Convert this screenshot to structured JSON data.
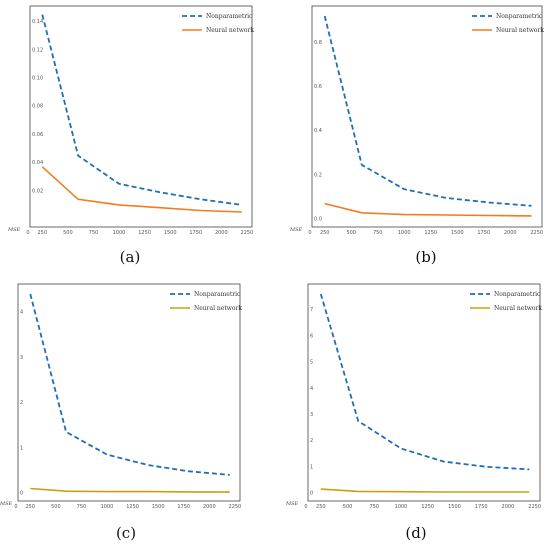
{
  "chart_data": [
    {
      "type": "line",
      "panel_label": "(a)",
      "ylabel": "MSE",
      "x": [
        250,
        600,
        1000,
        1400,
        1800,
        2200
      ],
      "xticks": [
        "250",
        "500",
        "750",
        "1000",
        "1250",
        "1500",
        "1750",
        "2000",
        "2250"
      ],
      "extra_tick": "0",
      "ylim": [
        0.0,
        0.144
      ],
      "yticks": [
        "0.02",
        "0.04",
        "0.06",
        "0.08",
        "0.10",
        "0.12",
        "0.14"
      ],
      "grid": false,
      "legend_position": "top-right",
      "series": [
        {
          "name": "Nonparametric",
          "style": "dashed",
          "color": "#1f6fb4",
          "values": [
            0.145,
            0.045,
            0.025,
            0.019,
            0.014,
            0.01
          ]
        },
        {
          "name": "Neural network",
          "style": "solid",
          "color": "#f47a20",
          "values": [
            0.037,
            0.014,
            0.01,
            0.008,
            0.006,
            0.005
          ]
        }
      ]
    },
    {
      "type": "line",
      "panel_label": "(b)",
      "ylabel": "MSE",
      "x": [
        250,
        600,
        1000,
        1400,
        1800,
        2200
      ],
      "xticks": [
        "250",
        "500",
        "750",
        "1000",
        "1250",
        "1500",
        "1750",
        "2000",
        "2250"
      ],
      "extra_tick": "0",
      "ylim": [
        0.0,
        0.92
      ],
      "yticks": [
        "0.0",
        "0.2",
        "0.4",
        "0.6",
        "0.8"
      ],
      "grid": false,
      "legend_position": "top-right",
      "series": [
        {
          "name": "Nonparametric",
          "style": "dashed",
          "color": "#1f6fb4",
          "values": [
            0.92,
            0.245,
            0.135,
            0.095,
            0.075,
            0.06
          ]
        },
        {
          "name": "Neural network",
          "style": "solid",
          "color": "#f47a20",
          "values": [
            0.07,
            0.028,
            0.02,
            0.018,
            0.016,
            0.014
          ]
        }
      ]
    },
    {
      "type": "line",
      "panel_label": "(c)",
      "ylabel": "MSE",
      "x": [
        250,
        600,
        1000,
        1400,
        1800,
        2200
      ],
      "xticks": [
        "250",
        "500",
        "750",
        "1000",
        "1250",
        "1500",
        "1750",
        "2000",
        "2250"
      ],
      "extra_tick": "0",
      "ylim": [
        0,
        4.4
      ],
      "yticks": [
        "0",
        "1",
        "2",
        "3",
        "4"
      ],
      "grid": false,
      "legend_position": "top-right",
      "series": [
        {
          "name": "Nonparametric",
          "style": "dashed",
          "color": "#1f6fb4",
          "values": [
            4.4,
            1.35,
            0.85,
            0.62,
            0.48,
            0.4
          ]
        },
        {
          "name": "Neural network",
          "style": "solid",
          "color": "#c8a010",
          "values": [
            0.1,
            0.04,
            0.03,
            0.03,
            0.025,
            0.02
          ]
        }
      ]
    },
    {
      "type": "line",
      "panel_label": "(d)",
      "ylabel": "MSE",
      "x": [
        250,
        600,
        1000,
        1400,
        1800,
        2200
      ],
      "xticks": [
        "250",
        "500",
        "750",
        "1000",
        "1250",
        "1500",
        "1750",
        "2000",
        "2250"
      ],
      "extra_tick": "0",
      "ylim": [
        0,
        7.6
      ],
      "yticks": [
        "0",
        "1",
        "2",
        "3",
        "4",
        "5",
        "6",
        "7"
      ],
      "grid": false,
      "legend_position": "top-right",
      "series": [
        {
          "name": "Nonparametric",
          "style": "dashed",
          "color": "#1f6fb4",
          "values": [
            7.6,
            2.75,
            1.7,
            1.2,
            1.0,
            0.9
          ]
        },
        {
          "name": "Neural network",
          "style": "solid",
          "color": "#c8a010",
          "values": [
            0.15,
            0.06,
            0.05,
            0.04,
            0.04,
            0.04
          ]
        }
      ]
    }
  ]
}
